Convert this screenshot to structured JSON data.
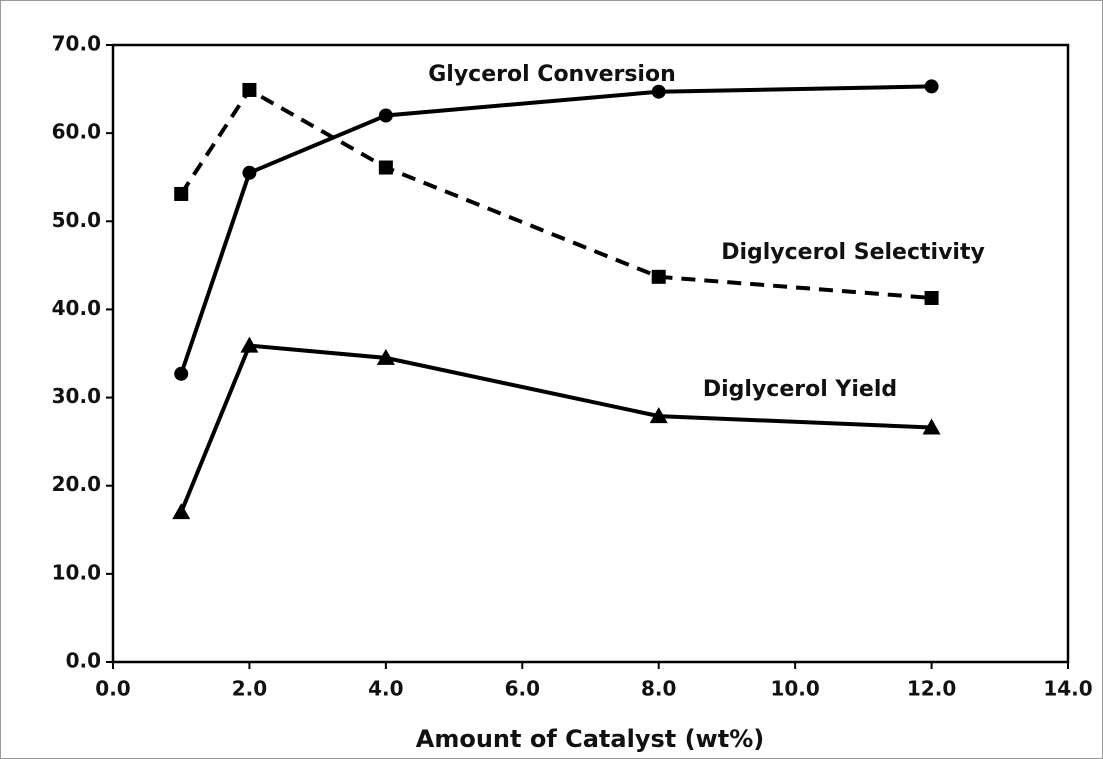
{
  "chart_data": {
    "type": "line",
    "x_label": "Amount of Catalyst (wt%)",
    "x": [
      1,
      2,
      4,
      8,
      12
    ],
    "series": [
      {
        "name": "Glycerol Conversion",
        "color": "#000000",
        "marker": "circle",
        "line_style": "solid",
        "values": [
          32.7,
          55.5,
          62.0,
          64.7,
          65.3
        ]
      },
      {
        "name": "Diglycerol Selectivity",
        "color": "#000000",
        "marker": "square",
        "line_style": "dashed",
        "values": [
          53.1,
          64.9,
          56.1,
          43.7,
          41.3
        ]
      },
      {
        "name": "Diglycerol Yield",
        "color": "#000000",
        "marker": "triangle",
        "line_style": "solid",
        "values": [
          17.0,
          35.9,
          34.5,
          27.9,
          26.6
        ]
      }
    ],
    "xlim": [
      0,
      14
    ],
    "xticks": [
      {
        "value": 0,
        "label": "0.0"
      },
      {
        "value": 2,
        "label": "2.0"
      },
      {
        "value": 4,
        "label": "4.0"
      },
      {
        "value": 6,
        "label": "6.0"
      },
      {
        "value": 8,
        "label": "8.0"
      },
      {
        "value": 10,
        "label": "10.0"
      },
      {
        "value": 12,
        "label": "12.0"
      },
      {
        "value": 14,
        "label": "14.0"
      }
    ],
    "ylim": [
      0,
      70
    ],
    "yticks": [
      {
        "value": 0,
        "label": "0.0"
      },
      {
        "value": 10,
        "label": "10.0"
      },
      {
        "value": 20,
        "label": "20.0"
      },
      {
        "value": 30,
        "label": "30.0"
      },
      {
        "value": 40,
        "label": "40.0"
      },
      {
        "value": 50,
        "label": "50.0"
      },
      {
        "value": 60,
        "label": "60.0"
      },
      {
        "value": 70,
        "label": "70.0"
      }
    ],
    "grid": false
  }
}
